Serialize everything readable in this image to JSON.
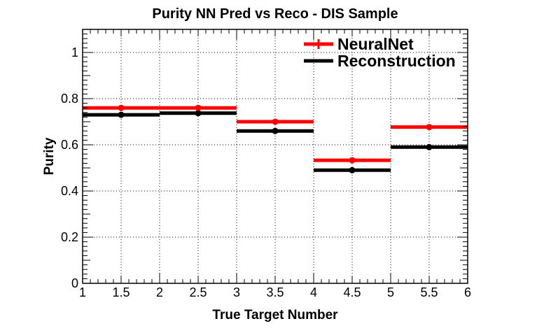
{
  "chart_data": {
    "type": "line",
    "title": "Purity NN Pred vs Reco - DIS Sample",
    "xlabel": "True Target Number",
    "ylabel": "Purity",
    "xlim": [
      1,
      6
    ],
    "ylim": [
      0,
      1.1
    ],
    "x_ticks": [
      "1",
      "1.5",
      "2",
      "2.5",
      "3",
      "3.5",
      "4",
      "4.5",
      "5",
      "5.5",
      "6"
    ],
    "y_ticks": [
      "0",
      "0.2",
      "0.4",
      "0.6",
      "0.8",
      "1"
    ],
    "grid": true,
    "legend_position": "top-right",
    "bin_edges": [
      1,
      2,
      3,
      4,
      5,
      6
    ],
    "bin_centers": [
      1.5,
      2.5,
      3.5,
      4.5,
      5.5
    ],
    "series": [
      {
        "name": "NeuralNet",
        "color": "#ff0000",
        "values": [
          0.76,
          0.76,
          0.7,
          0.533,
          0.677
        ]
      },
      {
        "name": "Reconstruction",
        "color": "#000000",
        "values": [
          0.73,
          0.737,
          0.66,
          0.49,
          0.59
        ]
      }
    ]
  }
}
